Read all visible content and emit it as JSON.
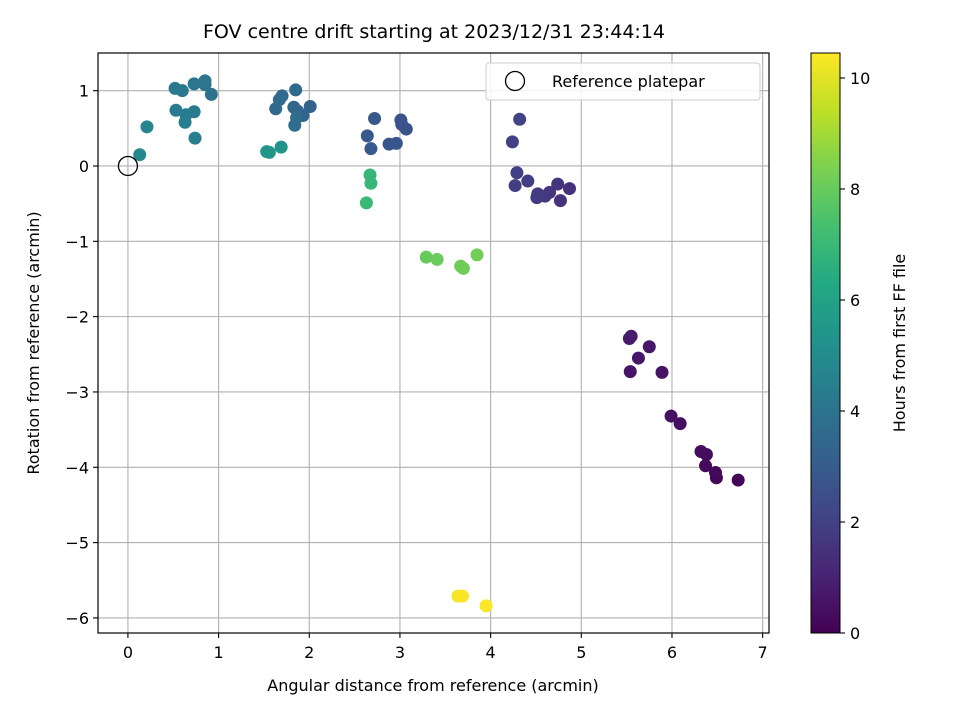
{
  "chart_data": {
    "type": "scatter",
    "title": "FOV centre drift starting at 2023/12/31 23:44:14",
    "xlabel": "Angular distance from reference (arcmin)",
    "ylabel": "Rotation from reference (arcmin)",
    "colorbar_label": "Hours from first FF file",
    "xlim": [
      -0.33,
      7.07
    ],
    "ylim": [
      -6.2,
      1.5
    ],
    "clim": [
      0,
      10.45
    ],
    "x_ticks": [
      0,
      1,
      2,
      3,
      4,
      5,
      6,
      7
    ],
    "y_ticks": [
      -6,
      -5,
      -4,
      -3,
      -2,
      -1,
      0,
      1
    ],
    "colorbar_ticks": [
      0,
      2,
      4,
      6,
      8,
      10
    ],
    "x_tick_labels": [
      "0",
      "1",
      "2",
      "3",
      "4",
      "5",
      "6",
      "7"
    ],
    "y_tick_labels": [
      "−6",
      "−5",
      "−4",
      "−3",
      "−2",
      "−1",
      "0",
      "1"
    ],
    "colorbar_tick_labels": [
      "0",
      "2",
      "4",
      "6",
      "8",
      "10"
    ],
    "grid": true,
    "legend_position": "top-right",
    "colormap": "viridis",
    "reference_point": {
      "label": "Reference platepar",
      "x": 0,
      "y": 0
    },
    "points": [
      {
        "x": 6.73,
        "y": -4.17,
        "h": 0.1
      },
      {
        "x": 6.49,
        "y": -4.14,
        "h": 0.15
      },
      {
        "x": 6.48,
        "y": -4.07,
        "h": 0.2
      },
      {
        "x": 6.37,
        "y": -3.98,
        "h": 0.25
      },
      {
        "x": 6.38,
        "y": -3.83,
        "h": 0.3
      },
      {
        "x": 6.32,
        "y": -3.79,
        "h": 0.35
      },
      {
        "x": 6.09,
        "y": -3.42,
        "h": 0.4
      },
      {
        "x": 5.99,
        "y": -3.32,
        "h": 0.45
      },
      {
        "x": 5.89,
        "y": -2.74,
        "h": 0.55
      },
      {
        "x": 5.54,
        "y": -2.73,
        "h": 0.6
      },
      {
        "x": 5.63,
        "y": -2.55,
        "h": 0.65
      },
      {
        "x": 5.75,
        "y": -2.4,
        "h": 0.7
      },
      {
        "x": 5.53,
        "y": -2.29,
        "h": 0.75
      },
      {
        "x": 5.55,
        "y": -2.26,
        "h": 0.8
      },
      {
        "x": 4.87,
        "y": -0.3,
        "h": 1.5
      },
      {
        "x": 4.77,
        "y": -0.46,
        "h": 1.55
      },
      {
        "x": 4.74,
        "y": -0.24,
        "h": 1.6
      },
      {
        "x": 4.65,
        "y": -0.35,
        "h": 1.65
      },
      {
        "x": 4.6,
        "y": -0.4,
        "h": 1.7
      },
      {
        "x": 4.51,
        "y": -0.42,
        "h": 1.75
      },
      {
        "x": 4.52,
        "y": -0.37,
        "h": 1.8
      },
      {
        "x": 4.41,
        "y": -0.2,
        "h": 1.85
      },
      {
        "x": 4.27,
        "y": -0.26,
        "h": 1.9
      },
      {
        "x": 4.29,
        "y": -0.09,
        "h": 1.95
      },
      {
        "x": 4.24,
        "y": 0.32,
        "h": 2.0
      },
      {
        "x": 4.32,
        "y": 0.62,
        "h": 2.05
      },
      {
        "x": 3.07,
        "y": 0.49,
        "h": 2.6
      },
      {
        "x": 3.01,
        "y": 0.61,
        "h": 2.65
      },
      {
        "x": 3.02,
        "y": 0.55,
        "h": 2.7
      },
      {
        "x": 2.96,
        "y": 0.3,
        "h": 2.75
      },
      {
        "x": 2.88,
        "y": 0.29,
        "h": 2.8
      },
      {
        "x": 2.72,
        "y": 0.63,
        "h": 2.85
      },
      {
        "x": 2.68,
        "y": 0.23,
        "h": 2.9
      },
      {
        "x": 2.64,
        "y": 0.4,
        "h": 2.95
      },
      {
        "x": 2.01,
        "y": 0.79,
        "h": 3.3
      },
      {
        "x": 1.93,
        "y": 0.67,
        "h": 3.35
      },
      {
        "x": 1.87,
        "y": 0.73,
        "h": 3.4
      },
      {
        "x": 1.83,
        "y": 0.78,
        "h": 3.45
      },
      {
        "x": 1.85,
        "y": 1.01,
        "h": 3.5
      },
      {
        "x": 1.7,
        "y": 0.93,
        "h": 3.55
      },
      {
        "x": 1.67,
        "y": 0.88,
        "h": 3.6
      },
      {
        "x": 1.63,
        "y": 0.76,
        "h": 3.65
      },
      {
        "x": 1.86,
        "y": 0.64,
        "h": 3.7
      },
      {
        "x": 1.84,
        "y": 0.54,
        "h": 3.75
      },
      {
        "x": 0.92,
        "y": 0.95,
        "h": 3.95
      },
      {
        "x": 0.85,
        "y": 1.08,
        "h": 4.0
      },
      {
        "x": 0.85,
        "y": 1.13,
        "h": 4.05
      },
      {
        "x": 0.73,
        "y": 1.09,
        "h": 4.1
      },
      {
        "x": 0.6,
        "y": 1.0,
        "h": 4.15
      },
      {
        "x": 0.52,
        "y": 1.03,
        "h": 4.2
      },
      {
        "x": 0.73,
        "y": 0.72,
        "h": 4.25
      },
      {
        "x": 0.64,
        "y": 0.68,
        "h": 4.3
      },
      {
        "x": 0.53,
        "y": 0.74,
        "h": 4.35
      },
      {
        "x": 0.63,
        "y": 0.58,
        "h": 4.4
      },
      {
        "x": 0.74,
        "y": 0.37,
        "h": 4.45
      },
      {
        "x": 0.21,
        "y": 0.52,
        "h": 4.75
      },
      {
        "x": 0.13,
        "y": 0.15,
        "h": 4.85
      },
      {
        "x": 1.69,
        "y": 0.25,
        "h": 5.4
      },
      {
        "x": 1.56,
        "y": 0.18,
        "h": 5.45
      },
      {
        "x": 1.53,
        "y": 0.19,
        "h": 5.5
      },
      {
        "x": 2.67,
        "y": -0.12,
        "h": 6.9
      },
      {
        "x": 2.68,
        "y": -0.23,
        "h": 6.95
      },
      {
        "x": 2.63,
        "y": -0.49,
        "h": 7.0
      },
      {
        "x": 3.29,
        "y": -1.21,
        "h": 8.0
      },
      {
        "x": 3.41,
        "y": -1.24,
        "h": 8.05
      },
      {
        "x": 3.67,
        "y": -1.33,
        "h": 8.1
      },
      {
        "x": 3.7,
        "y": -1.36,
        "h": 8.15
      },
      {
        "x": 3.85,
        "y": -1.18,
        "h": 8.2
      },
      {
        "x": 3.64,
        "y": -5.71,
        "h": 10.3
      },
      {
        "x": 3.69,
        "y": -5.71,
        "h": 10.35
      },
      {
        "x": 3.95,
        "y": -5.84,
        "h": 10.4
      }
    ]
  }
}
